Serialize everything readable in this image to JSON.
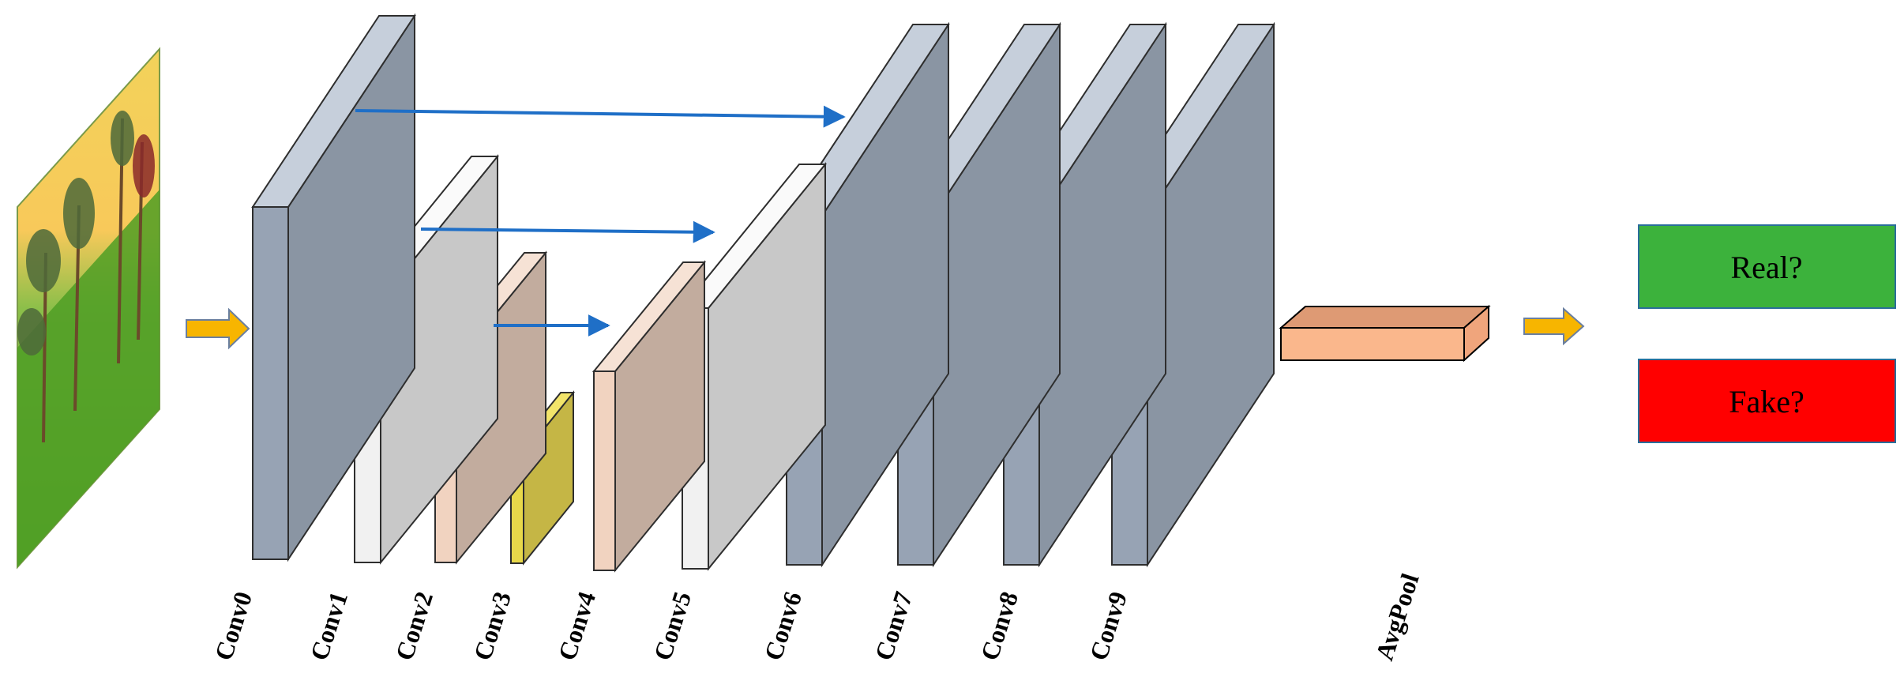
{
  "layers": [
    {
      "label": "Conv0",
      "kind": "gray"
    },
    {
      "label": "Conv1",
      "kind": "white"
    },
    {
      "label": "Conv2",
      "kind": "tan"
    },
    {
      "label": "Conv3",
      "kind": "yellow"
    },
    {
      "label": "Conv4",
      "kind": "tan"
    },
    {
      "label": "Conv5",
      "kind": "white"
    },
    {
      "label": "Conv6",
      "kind": "gray"
    },
    {
      "label": "Conv7",
      "kind": "gray"
    },
    {
      "label": "Conv8",
      "kind": "gray"
    },
    {
      "label": "Conv9",
      "kind": "gray"
    }
  ],
  "pool": {
    "label": "AvgPool"
  },
  "outputs": {
    "real": "Real?",
    "fake": "Fake?"
  },
  "colors": {
    "gray_front": "#97a3b4",
    "gray_side": "#8a95a3",
    "gray_top": "#c6cfdb",
    "white_front": "#f1f1f1",
    "white_side": "#c8c8c8",
    "white_top": "#fafafa",
    "tan_front": "#f1d3c0",
    "tan_side": "#c2ac9e",
    "tan_top": "#f6e2d5",
    "yellow_front": "#e8d84a",
    "yellow_side": "#c5b645",
    "yellow_top": "#f2e46a",
    "pool_front": "#fab78c",
    "pool_top": "#de9a74",
    "pool_side": "#f0a57c",
    "skip_arrow": "#1f6fc7",
    "flow_arrow": "#f7b500",
    "real_box": "#3cb23c",
    "fake_box": "#ff0000"
  }
}
